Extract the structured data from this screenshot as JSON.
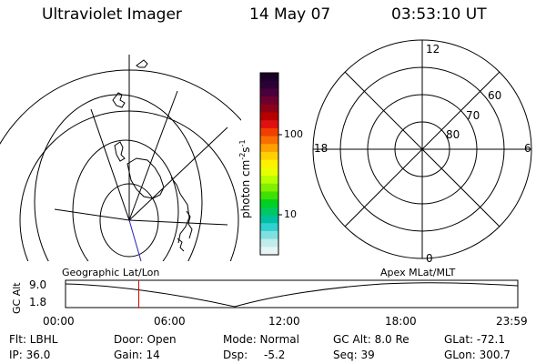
{
  "header": {
    "title": "Ultraviolet Imager",
    "date": "14 May 07",
    "time": "03:53:10 UT"
  },
  "colorbar": {
    "label": "photon cm",
    "label_sup1": "-2",
    "label_s": "s",
    "label_sup2": "-1",
    "tick_high": "100",
    "tick_low": "10",
    "colors": [
      "#1a0026",
      "#2b0036",
      "#4a003a",
      "#6e0030",
      "#8e0018",
      "#b80000",
      "#e01010",
      "#f04000",
      "#f86f00",
      "#ffa000",
      "#ffd000",
      "#fff000",
      "#e8ff00",
      "#b8ff00",
      "#80f000",
      "#40e000",
      "#00d020",
      "#00c860",
      "#00c0a0",
      "#30d0d0",
      "#80e0e0",
      "#c0ecec",
      "#e8f4f4"
    ]
  },
  "polar_plot": {
    "label_top": "12",
    "label_bottom": "0",
    "label_left": "18",
    "label_right": "6",
    "ring_labels": [
      "60",
      "70",
      "80"
    ]
  },
  "altitude_plot": {
    "ylabel": "GC Alt",
    "ymax": "9.0",
    "ymin": "1.8",
    "left_title": "Geographic Lat/Lon",
    "right_title": "Apex MLat/MLT",
    "x_ticks": [
      "00:00",
      "06:00",
      "12:00",
      "18:00",
      "23:59"
    ],
    "marker_time_hours": 3.886
  },
  "info": {
    "flt": "Flt: LBHL",
    "ip": "IP: 36.0",
    "door": "Door: Open",
    "gain": "Gain: 14",
    "mode": "Mode: Normal",
    "dsp_label": "Dsp:",
    "dsp_value": "-5.2",
    "gcalt": "GC Alt: 8.0 Re",
    "seq": "Seq: 39",
    "glat": "GLat: -72.1",
    "glon": "GLon: 300.7"
  }
}
